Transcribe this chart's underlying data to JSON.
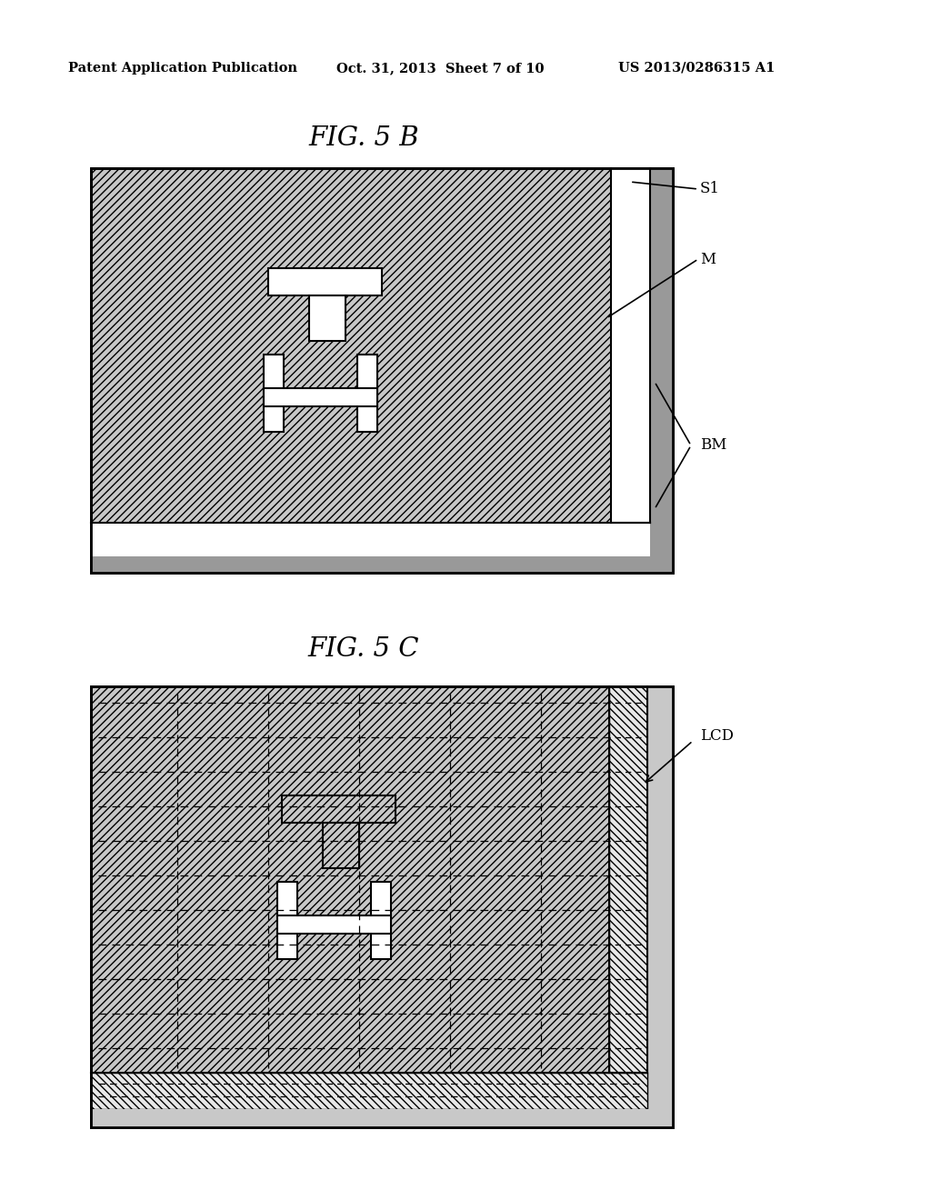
{
  "title_text": "Patent Application Publication",
  "date_text": "Oct. 31, 2013  Sheet 7 of 10",
  "patent_text": "US 2013/0286315 A1",
  "fig5b_title": "FIG. 5 B",
  "fig5c_title": "FIG. 5 C",
  "background_color": "#ffffff",
  "label_s1": "S1",
  "label_m": "M",
  "label_bm": "BM",
  "label_lcd": "LCD",
  "hatch_fill_color": "#c8c8c8",
  "white_color": "#ffffff",
  "bm_color": "#999999"
}
